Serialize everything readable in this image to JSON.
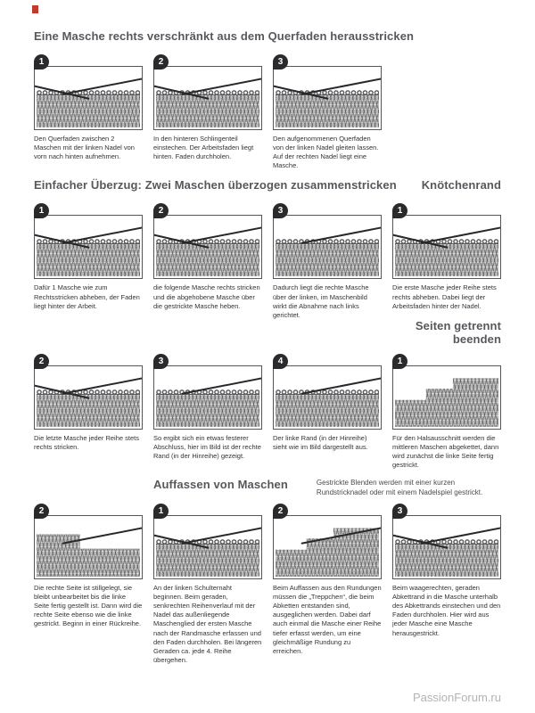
{
  "watermark": "PassionForum.ru",
  "sections": {
    "s1": {
      "title": "Eine Masche rechts verschränkt aus dem Querfaden herausstricken",
      "steps": [
        {
          "num": "1",
          "caption": "Den Querfaden zwischen 2 Maschen mit der linken Nadel von vorn nach hinten aufnehmen."
        },
        {
          "num": "2",
          "caption": "In den hinteren Schlingenteil einstechen. Der Arbeitsfaden liegt hinten. Faden durchholen."
        },
        {
          "num": "3",
          "caption": "Den aufgenommenen Querfaden von der linken Nadel gleiten lassen. Auf der rechten Nadel liegt eine Masche."
        }
      ]
    },
    "s2": {
      "title": "Einfacher Überzug: Zwei Maschen überzogen zusammenstricken",
      "steps": [
        {
          "num": "1",
          "caption": "Dafür 1 Masche wie zum Rechtsstricken abheben, der Faden liegt hinter der Arbeit."
        },
        {
          "num": "2",
          "caption": "die folgende Masche rechts stricken und die abgehobene Masche über die gestrickte Masche heben."
        },
        {
          "num": "3",
          "caption": "Dadurch liegt die rechte Masche über der linken, im Maschenbild wirkt die Abnahme nach links gerichtet."
        }
      ]
    },
    "s3": {
      "title": "Knötchenrand",
      "steps": [
        {
          "num": "1",
          "caption": "Die erste Masche jeder Reihe stets rechts abheben. Dabei liegt der Arbeitsfaden hinter der Nadel."
        },
        {
          "num": "2",
          "caption": "Die letzte Masche jeder Reihe stets rechts stricken."
        },
        {
          "num": "3",
          "caption": "So ergibt sich ein etwas festerer Abschluss, hier im Bild ist der rechte Rand (in der Hinreihe) gezeigt."
        },
        {
          "num": "4",
          "caption": "Der linke Rand (in der Hinreihe) sieht wie im Bild dargestellt aus."
        }
      ]
    },
    "s4": {
      "title": "Seiten getrennt beenden",
      "steps": [
        {
          "num": "1",
          "caption": "Für den Halsausschnitt werden die mittleren Maschen abgekettet, dann wird zunächst die linke Seite fertig gestrickt."
        },
        {
          "num": "2",
          "caption": "Die rechte Seite ist stillgelegt, sie bleibt unbearbeitet bis die linke Seite fertig gestellt ist. Dann wird die rechte Seite ebenso wie die linke gestrickt. Beginn in einer Rückreihe."
        }
      ]
    },
    "s5": {
      "title": "Auffassen von Maschen",
      "intro": "Gestrickte Blenden werden mit einer kurzen Rundstricknadel oder mit einem Nadelspiel gestrickt.",
      "steps": [
        {
          "num": "1",
          "caption": "An der linken Schulternaht beginnen. Beim geraden, senkrechten Reihenverlauf mit der Nadel das außenliegende Maschenglied der ersten Masche nach der Randmasche erfassen und den Faden durchholen. Bei längeren Geraden ca. jede 4. Reihe übergehen."
        },
        {
          "num": "2",
          "caption": "Beim Auffassen aus den Rundungen müssen die „Treppchen“, die beim Abketten entstanden sind, ausgeglichen werden. Dabei darf auch einmal die Masche einer Reihe tiefer erfasst werden, um eine gleichmäßige Rundung zu erreichen."
        },
        {
          "num": "3",
          "caption": "Beim waagerechten, geraden Abkettrand in die Masche unterhalb des Abkettrands einstechen und den Faden durchholen. Hier wird aus jeder Masche eine Masche herausgestrickt."
        }
      ]
    }
  }
}
